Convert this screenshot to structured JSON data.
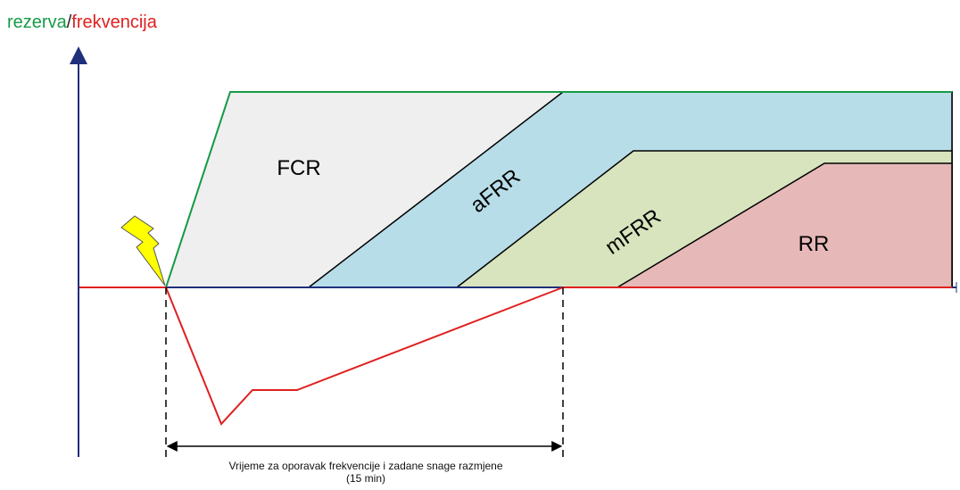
{
  "axis_title": {
    "reserve": "rezerva",
    "separator": "/",
    "frequency": "frekvencija"
  },
  "regions": [
    {
      "id": "fcr",
      "label": "FCR",
      "fill": "#efefef"
    },
    {
      "id": "afrr",
      "label": "aFRR",
      "fill": "#b7dde8"
    },
    {
      "id": "mfrr",
      "label": "mFRR",
      "fill": "#d7e4bd"
    },
    {
      "id": "rr",
      "label": "RR",
      "fill": "#e6b9b8"
    }
  ],
  "colors": {
    "reserve_line": "#169b46",
    "frequency_line": "#e02020",
    "axis": "#1f2f7a",
    "event_bolt": "#ffff00"
  },
  "icons": {
    "event": "lightning-bolt-icon"
  },
  "caption": {
    "line1": "Vrijeme za oporavak frekvencije i zadane snage razmjene",
    "line2": "(15 min)"
  }
}
